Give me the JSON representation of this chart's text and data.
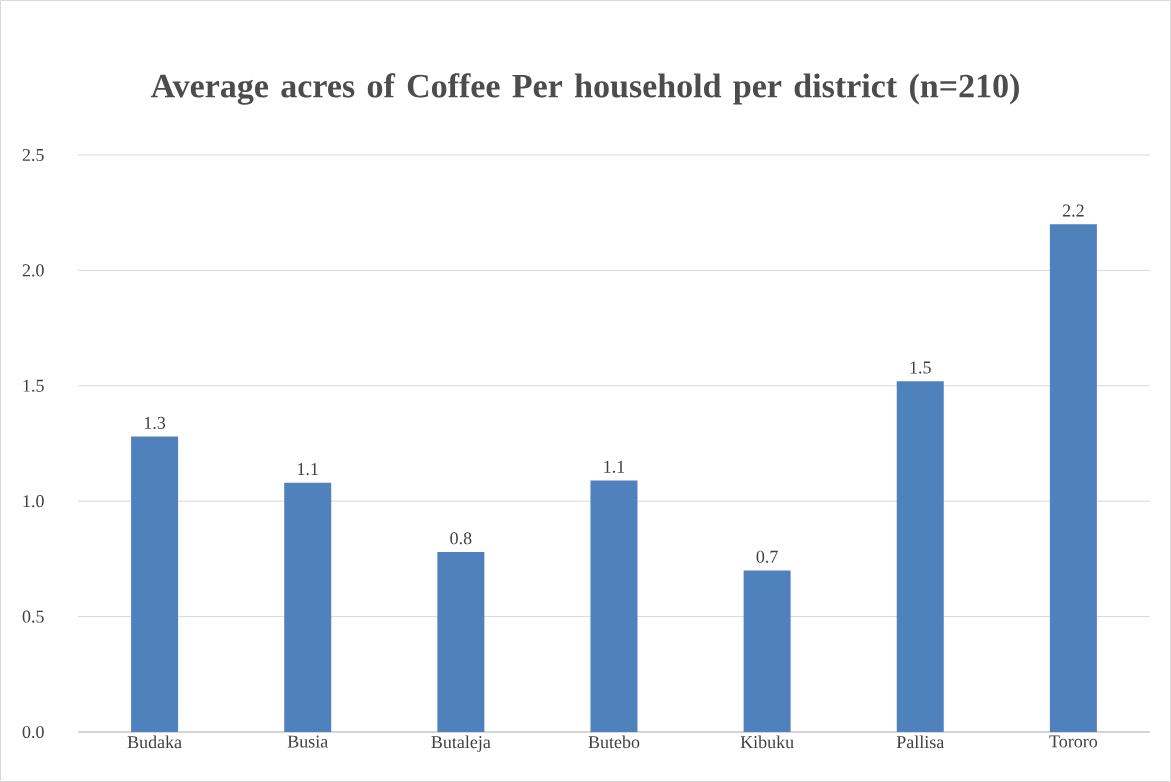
{
  "chart_data": {
    "type": "bar",
    "title": "Average acres of Coffee Per household per district (n=210)",
    "categories": [
      "Budaka",
      "Busia",
      "Butaleja",
      "Butebo",
      "Kibuku",
      "Pallisa",
      "Tororo"
    ],
    "values": [
      1.28,
      1.08,
      0.78,
      1.09,
      0.7,
      1.52,
      2.2
    ],
    "value_labels": [
      "1.3",
      "1.1",
      "0.8",
      "1.1",
      "0.7",
      "1.5",
      "2.2"
    ],
    "color": "#4f81bd",
    "ylim": [
      0,
      2.5
    ],
    "yticks": [
      {
        "value": 0,
        "label": "0.0"
      },
      {
        "value": 0.5,
        "label": "0.5"
      },
      {
        "value": 1,
        "label": "1.0"
      },
      {
        "value": 1.5,
        "label": "1.5"
      },
      {
        "value": 2,
        "label": "2.0"
      },
      {
        "value": 2.5,
        "label": "2.5"
      }
    ],
    "grid": "y"
  }
}
